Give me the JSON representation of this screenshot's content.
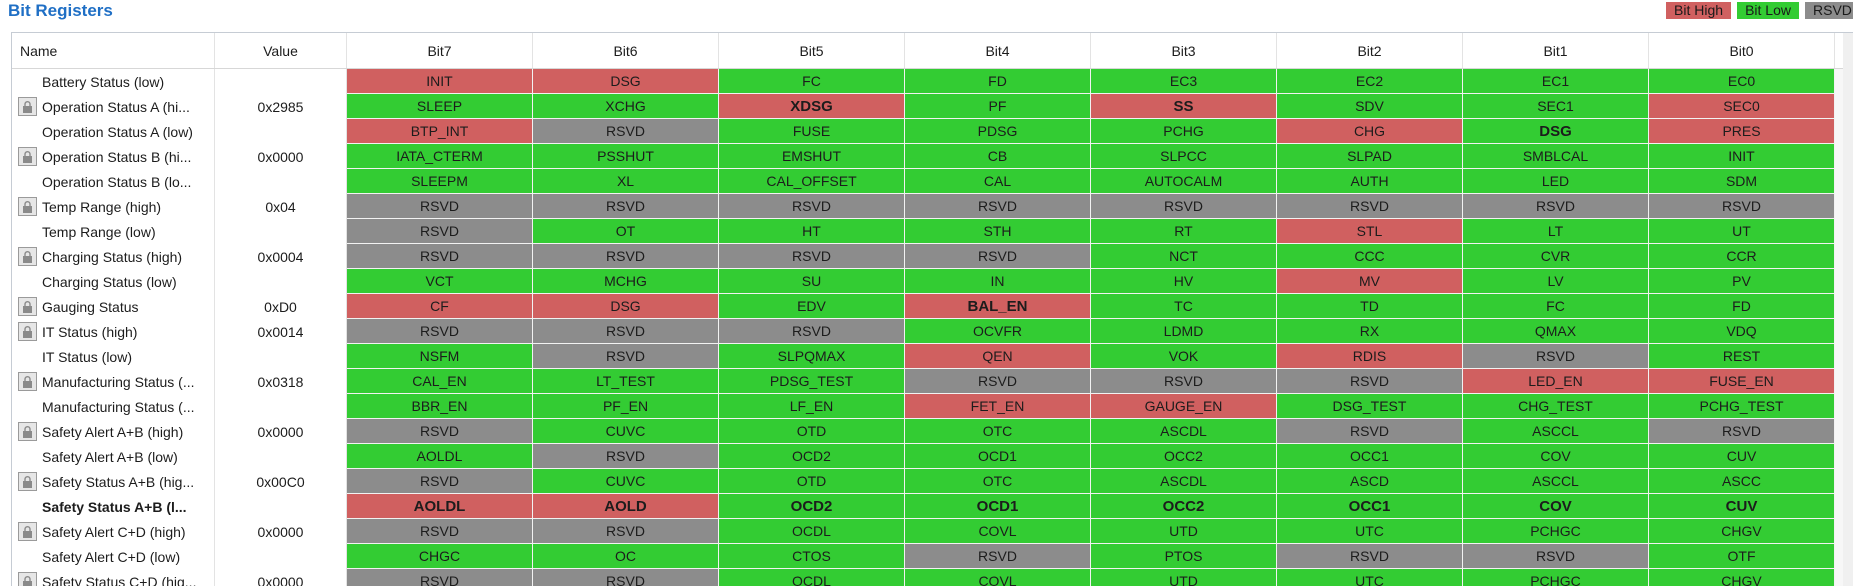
{
  "panel_title": "Bit Registers",
  "legend": {
    "high": "Bit High",
    "low": "Bit Low",
    "reserved": "RSVD"
  },
  "colors": {
    "high": "#d06060",
    "low": "#33cc33",
    "reserved": "#8c8c8c"
  },
  "columns": [
    "Name",
    "Value",
    "Bit7",
    "Bit6",
    "Bit5",
    "Bit4",
    "Bit3",
    "Bit2",
    "Bit1",
    "Bit0"
  ],
  "rows": [
    {
      "name": "Battery Status (low)",
      "value": "",
      "lock": false,
      "bold": false,
      "bits": [
        [
          "INIT",
          "r",
          0
        ],
        [
          "DSG",
          "r",
          0
        ],
        [
          "FC",
          "g",
          0
        ],
        [
          "FD",
          "g",
          0
        ],
        [
          "EC3",
          "g",
          0
        ],
        [
          "EC2",
          "g",
          0
        ],
        [
          "EC1",
          "g",
          0
        ],
        [
          "EC0",
          "g",
          0
        ]
      ]
    },
    {
      "name": "Operation Status A (hi...",
      "value": "0x2985",
      "lock": true,
      "bold": false,
      "bits": [
        [
          "SLEEP",
          "g",
          0
        ],
        [
          "XCHG",
          "g",
          0
        ],
        [
          "XDSG",
          "r",
          1
        ],
        [
          "PF",
          "g",
          0
        ],
        [
          "SS",
          "r",
          1
        ],
        [
          "SDV",
          "g",
          0
        ],
        [
          "SEC1",
          "g",
          0
        ],
        [
          "SEC0",
          "r",
          0
        ]
      ]
    },
    {
      "name": "Operation Status A (low)",
      "value": "",
      "lock": false,
      "bold": false,
      "bits": [
        [
          "BTP_INT",
          "r",
          0
        ],
        [
          "RSVD",
          "x",
          0
        ],
        [
          "FUSE",
          "g",
          0
        ],
        [
          "PDSG",
          "g",
          0
        ],
        [
          "PCHG",
          "g",
          0
        ],
        [
          "CHG",
          "r",
          0
        ],
        [
          "DSG",
          "g",
          1
        ],
        [
          "PRES",
          "r",
          0
        ]
      ]
    },
    {
      "name": "Operation Status B (hi...",
      "value": "0x0000",
      "lock": true,
      "bold": false,
      "bits": [
        [
          "IATA_CTERM",
          "g",
          0
        ],
        [
          "PSSHUT",
          "g",
          0
        ],
        [
          "EMSHUT",
          "g",
          0
        ],
        [
          "CB",
          "g",
          0
        ],
        [
          "SLPCC",
          "g",
          0
        ],
        [
          "SLPAD",
          "g",
          0
        ],
        [
          "SMBLCAL",
          "g",
          0
        ],
        [
          "INIT",
          "g",
          0
        ]
      ]
    },
    {
      "name": "Operation Status B (lo...",
      "value": "",
      "lock": false,
      "bold": false,
      "bits": [
        [
          "SLEEPM",
          "g",
          0
        ],
        [
          "XL",
          "g",
          0
        ],
        [
          "CAL_OFFSET",
          "g",
          0
        ],
        [
          "CAL",
          "g",
          0
        ],
        [
          "AUTOCALM",
          "g",
          0
        ],
        [
          "AUTH",
          "g",
          0
        ],
        [
          "LED",
          "g",
          0
        ],
        [
          "SDM",
          "g",
          0
        ]
      ]
    },
    {
      "name": "Temp Range (high)",
      "value": "0x04",
      "lock": true,
      "bold": false,
      "bits": [
        [
          "RSVD",
          "x",
          0
        ],
        [
          "RSVD",
          "x",
          0
        ],
        [
          "RSVD",
          "x",
          0
        ],
        [
          "RSVD",
          "x",
          0
        ],
        [
          "RSVD",
          "x",
          0
        ],
        [
          "RSVD",
          "x",
          0
        ],
        [
          "RSVD",
          "x",
          0
        ],
        [
          "RSVD",
          "x",
          0
        ]
      ]
    },
    {
      "name": "Temp Range (low)",
      "value": "",
      "lock": false,
      "bold": false,
      "bits": [
        [
          "RSVD",
          "x",
          0
        ],
        [
          "OT",
          "g",
          0
        ],
        [
          "HT",
          "g",
          0
        ],
        [
          "STH",
          "g",
          0
        ],
        [
          "RT",
          "g",
          0
        ],
        [
          "STL",
          "r",
          0
        ],
        [
          "LT",
          "g",
          0
        ],
        [
          "UT",
          "g",
          0
        ]
      ]
    },
    {
      "name": "Charging Status (high)",
      "value": "0x0004",
      "lock": true,
      "bold": false,
      "bits": [
        [
          "RSVD",
          "x",
          0
        ],
        [
          "RSVD",
          "x",
          0
        ],
        [
          "RSVD",
          "x",
          0
        ],
        [
          "RSVD",
          "x",
          0
        ],
        [
          "NCT",
          "g",
          0
        ],
        [
          "CCC",
          "g",
          0
        ],
        [
          "CVR",
          "g",
          0
        ],
        [
          "CCR",
          "g",
          0
        ]
      ]
    },
    {
      "name": "Charging Status (low)",
      "value": "",
      "lock": false,
      "bold": false,
      "bits": [
        [
          "VCT",
          "g",
          0
        ],
        [
          "MCHG",
          "g",
          0
        ],
        [
          "SU",
          "g",
          0
        ],
        [
          "IN",
          "g",
          0
        ],
        [
          "HV",
          "g",
          0
        ],
        [
          "MV",
          "r",
          0
        ],
        [
          "LV",
          "g",
          0
        ],
        [
          "PV",
          "g",
          0
        ]
      ]
    },
    {
      "name": "Gauging Status",
      "value": "0xD0",
      "lock": true,
      "bold": false,
      "bits": [
        [
          "CF",
          "r",
          0
        ],
        [
          "DSG",
          "r",
          0
        ],
        [
          "EDV",
          "g",
          0
        ],
        [
          "BAL_EN",
          "r",
          1
        ],
        [
          "TC",
          "g",
          0
        ],
        [
          "TD",
          "g",
          0
        ],
        [
          "FC",
          "g",
          0
        ],
        [
          "FD",
          "g",
          0
        ]
      ]
    },
    {
      "name": "IT Status (high)",
      "value": "0x0014",
      "lock": true,
      "bold": false,
      "bits": [
        [
          "RSVD",
          "x",
          0
        ],
        [
          "RSVD",
          "x",
          0
        ],
        [
          "RSVD",
          "x",
          0
        ],
        [
          "OCVFR",
          "g",
          0
        ],
        [
          "LDMD",
          "g",
          0
        ],
        [
          "RX",
          "g",
          0
        ],
        [
          "QMAX",
          "g",
          0
        ],
        [
          "VDQ",
          "g",
          0
        ]
      ]
    },
    {
      "name": "IT Status (low)",
      "value": "",
      "lock": false,
      "bold": false,
      "bits": [
        [
          "NSFM",
          "g",
          0
        ],
        [
          "RSVD",
          "x",
          0
        ],
        [
          "SLPQMAX",
          "g",
          0
        ],
        [
          "QEN",
          "r",
          0
        ],
        [
          "VOK",
          "g",
          0
        ],
        [
          "RDIS",
          "r",
          0
        ],
        [
          "RSVD",
          "x",
          0
        ],
        [
          "REST",
          "g",
          0
        ]
      ]
    },
    {
      "name": "Manufacturing Status (...",
      "value": "0x0318",
      "lock": true,
      "bold": false,
      "bits": [
        [
          "CAL_EN",
          "g",
          0
        ],
        [
          "LT_TEST",
          "g",
          0
        ],
        [
          "PDSG_TEST",
          "g",
          0
        ],
        [
          "RSVD",
          "x",
          0
        ],
        [
          "RSVD",
          "x",
          0
        ],
        [
          "RSVD",
          "x",
          0
        ],
        [
          "LED_EN",
          "r",
          0
        ],
        [
          "FUSE_EN",
          "r",
          0
        ]
      ]
    },
    {
      "name": "Manufacturing Status (...",
      "value": "",
      "lock": false,
      "bold": false,
      "bits": [
        [
          "BBR_EN",
          "g",
          0
        ],
        [
          "PF_EN",
          "g",
          0
        ],
        [
          "LF_EN",
          "g",
          0
        ],
        [
          "FET_EN",
          "r",
          0
        ],
        [
          "GAUGE_EN",
          "r",
          0
        ],
        [
          "DSG_TEST",
          "g",
          0
        ],
        [
          "CHG_TEST",
          "g",
          0
        ],
        [
          "PCHG_TEST",
          "g",
          0
        ]
      ]
    },
    {
      "name": "Safety Alert A+B (high)",
      "value": "0x0000",
      "lock": true,
      "bold": false,
      "bits": [
        [
          "RSVD",
          "x",
          0
        ],
        [
          "CUVC",
          "g",
          0
        ],
        [
          "OTD",
          "g",
          0
        ],
        [
          "OTC",
          "g",
          0
        ],
        [
          "ASCDL",
          "g",
          0
        ],
        [
          "RSVD",
          "x",
          0
        ],
        [
          "ASCCL",
          "g",
          0
        ],
        [
          "RSVD",
          "x",
          0
        ]
      ]
    },
    {
      "name": "Safety Alert A+B (low)",
      "value": "",
      "lock": false,
      "bold": false,
      "bits": [
        [
          "AOLDL",
          "g",
          0
        ],
        [
          "RSVD",
          "x",
          0
        ],
        [
          "OCD2",
          "g",
          0
        ],
        [
          "OCD1",
          "g",
          0
        ],
        [
          "OCC2",
          "g",
          0
        ],
        [
          "OCC1",
          "g",
          0
        ],
        [
          "COV",
          "g",
          0
        ],
        [
          "CUV",
          "g",
          0
        ]
      ]
    },
    {
      "name": "Safety Status A+B (hig...",
      "value": "0x00C0",
      "lock": true,
      "bold": false,
      "bits": [
        [
          "RSVD",
          "x",
          0
        ],
        [
          "CUVC",
          "g",
          0
        ],
        [
          "OTD",
          "g",
          0
        ],
        [
          "OTC",
          "g",
          0
        ],
        [
          "ASCDL",
          "g",
          0
        ],
        [
          "ASCD",
          "g",
          0
        ],
        [
          "ASCCL",
          "g",
          0
        ],
        [
          "ASCC",
          "g",
          0
        ]
      ]
    },
    {
      "name": "Safety Status A+B (l...",
      "value": "",
      "lock": false,
      "bold": true,
      "bits": [
        [
          "AOLDL",
          "r",
          1
        ],
        [
          "AOLD",
          "r",
          1
        ],
        [
          "OCD2",
          "g",
          1
        ],
        [
          "OCD1",
          "g",
          1
        ],
        [
          "OCC2",
          "g",
          1
        ],
        [
          "OCC1",
          "g",
          1
        ],
        [
          "COV",
          "g",
          1
        ],
        [
          "CUV",
          "g",
          1
        ]
      ]
    },
    {
      "name": "Safety Alert C+D (high)",
      "value": "0x0000",
      "lock": true,
      "bold": false,
      "bits": [
        [
          "RSVD",
          "x",
          0
        ],
        [
          "RSVD",
          "x",
          0
        ],
        [
          "OCDL",
          "g",
          0
        ],
        [
          "COVL",
          "g",
          0
        ],
        [
          "UTD",
          "g",
          0
        ],
        [
          "UTC",
          "g",
          0
        ],
        [
          "PCHGC",
          "g",
          0
        ],
        [
          "CHGV",
          "g",
          0
        ]
      ]
    },
    {
      "name": "Safety Alert C+D (low)",
      "value": "",
      "lock": false,
      "bold": false,
      "bits": [
        [
          "CHGC",
          "g",
          0
        ],
        [
          "OC",
          "g",
          0
        ],
        [
          "CTOS",
          "g",
          0
        ],
        [
          "RSVD",
          "x",
          0
        ],
        [
          "PTOS",
          "g",
          0
        ],
        [
          "RSVD",
          "x",
          0
        ],
        [
          "RSVD",
          "x",
          0
        ],
        [
          "OTF",
          "g",
          0
        ]
      ]
    },
    {
      "name": "Safety Status C+D (hig...",
      "value": "0x0000",
      "lock": true,
      "bold": false,
      "bits": [
        [
          "RSVD",
          "x",
          0
        ],
        [
          "RSVD",
          "x",
          0
        ],
        [
          "OCDL",
          "g",
          0
        ],
        [
          "COVL",
          "g",
          0
        ],
        [
          "UTD",
          "g",
          0
        ],
        [
          "UTC",
          "g",
          0
        ],
        [
          "PCHGC",
          "g",
          0
        ],
        [
          "CHGV",
          "g",
          0
        ]
      ]
    }
  ]
}
